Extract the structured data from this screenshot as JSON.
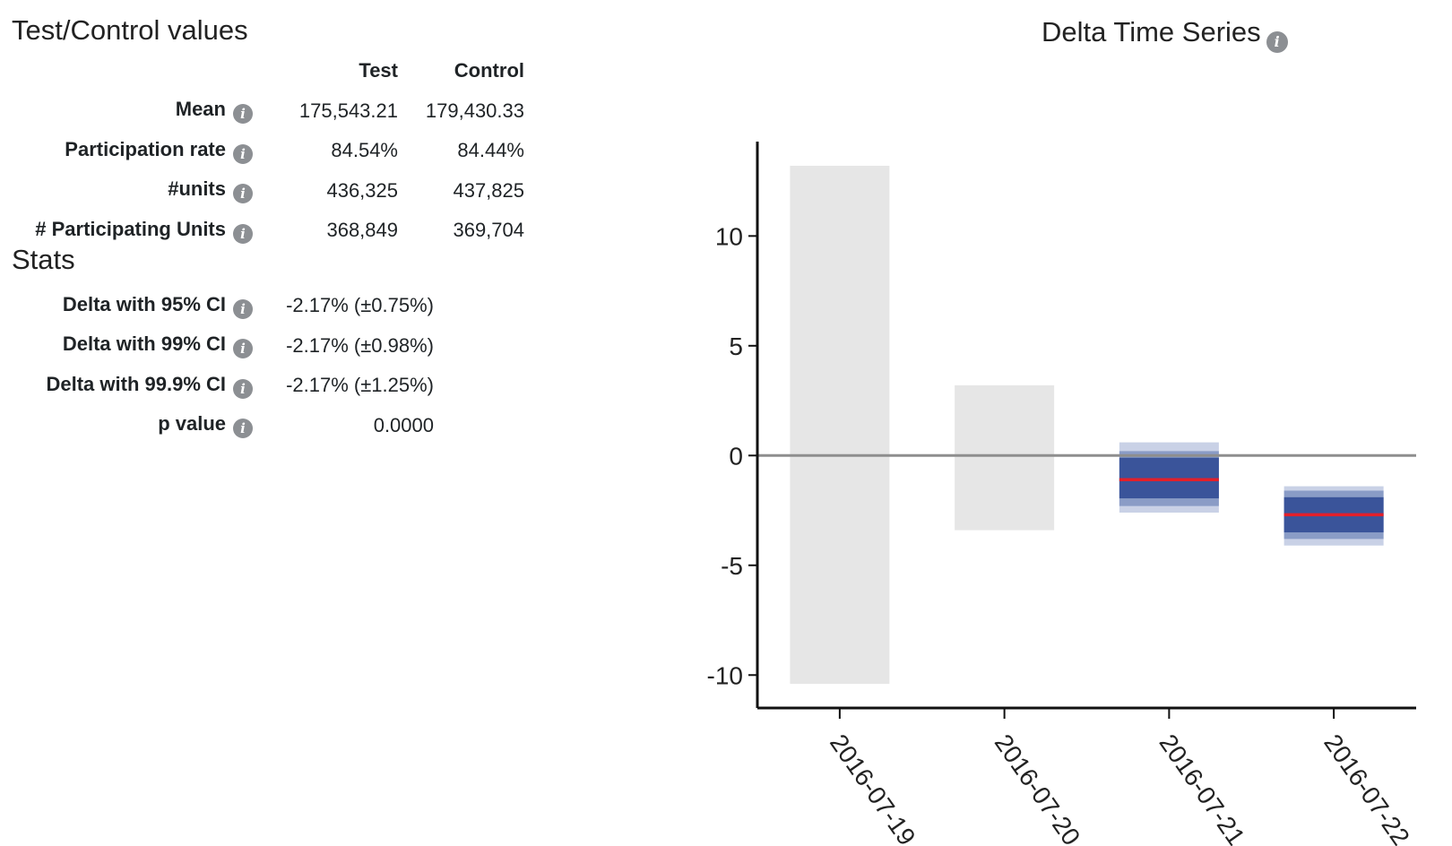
{
  "test_control": {
    "title": "Test/Control values",
    "headers": [
      "Test",
      "Control"
    ],
    "rows": [
      {
        "label": "Mean",
        "test": "175,543.21",
        "control": "179,430.33"
      },
      {
        "label": "Participation rate",
        "test": "84.54%",
        "control": "84.44%"
      },
      {
        "label": "#units",
        "test": "436,325",
        "control": "437,825"
      },
      {
        "label": "# Participating Units",
        "test": "368,849",
        "control": "369,704"
      }
    ]
  },
  "stats": {
    "title": "Stats",
    "rows": [
      {
        "label": "Delta with 95% CI",
        "value": "-2.17% (±0.75%)"
      },
      {
        "label": "Delta with 99% CI",
        "value": "-2.17% (±0.98%)"
      },
      {
        "label": "Delta with 99.9% CI",
        "value": "-2.17% (±1.25%)"
      },
      {
        "label": "p value",
        "value": "0.0000"
      }
    ]
  },
  "icons": {
    "info": "info-icon",
    "info_glyph": "i"
  },
  "colors": {
    "grey_bar": "#e6e6e6",
    "ci_95": "#3a549a",
    "ci_99": "#8a9cc6",
    "ci_999": "#c9d1e6",
    "delta_line": "#e3202a",
    "zero_line": "#8e8e8e"
  },
  "chart_data": {
    "type": "bar",
    "title": "Delta Time Series",
    "xlabel": "",
    "ylabel": "",
    "categories": [
      "2016-07-19",
      "2016-07-20",
      "2016-07-21",
      "2016-07-22"
    ],
    "ylim": [
      -11.5,
      14.3
    ],
    "yticks": [
      10,
      5,
      0,
      -5,
      -10
    ],
    "grid": false,
    "legend": "none",
    "series": [
      {
        "kind": "range",
        "points": [
          {
            "category": "2016-07-19",
            "low": -10.4,
            "high": 13.2
          },
          {
            "category": "2016-07-20",
            "low": -3.4,
            "high": 3.2
          }
        ]
      },
      {
        "kind": "confidence-intervals",
        "points": [
          {
            "category": "2016-07-21",
            "delta": -1.1,
            "ci_95": [
              -1.95,
              -0.1
            ],
            "ci_99": [
              -2.3,
              0.2
            ],
            "ci_999": [
              -2.6,
              0.6
            ]
          },
          {
            "category": "2016-07-22",
            "delta": -2.7,
            "ci_95": [
              -3.5,
              -1.9
            ],
            "ci_99": [
              -3.8,
              -1.6
            ],
            "ci_999": [
              -4.1,
              -1.4
            ]
          }
        ]
      }
    ]
  }
}
